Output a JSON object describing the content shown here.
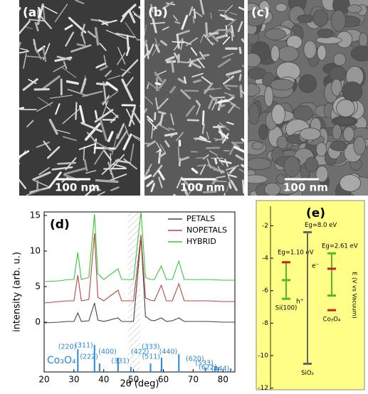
{
  "images": [
    {
      "label": "(a)",
      "scale_bar": "100 nm"
    },
    {
      "label": "(b)",
      "scale_bar": "100 nm"
    },
    {
      "label": "(c)",
      "scale_bar": "100 nm"
    }
  ],
  "chart_data": [
    {
      "type": "line",
      "panel_label": "(d)",
      "xlabel": "2θ (deg)",
      "ylabel": "intensity (arb. u.)",
      "xlim": [
        20,
        84
      ],
      "ylim": [
        -7,
        15.5
      ],
      "xticks": [
        20,
        30,
        40,
        50,
        60,
        70,
        80
      ],
      "yticks": [
        0,
        5,
        10,
        15
      ],
      "x": [
        20,
        25,
        28,
        30,
        31.3,
        32.5,
        35,
        36.9,
        38,
        40,
        44.8,
        46,
        50,
        52.5,
        54,
        55.6,
        57,
        59.3,
        61,
        63,
        65.2,
        67,
        70,
        75,
        80,
        84
      ],
      "series": [
        {
          "name": "PETALS",
          "color": "#444444",
          "values": [
            -0.1,
            0,
            0.1,
            0.1,
            1.3,
            0.1,
            0.2,
            2.7,
            0.3,
            0.1,
            0.6,
            0.1,
            0.1,
            12,
            0.8,
            0.3,
            0.2,
            0.6,
            0.1,
            0.2,
            0.6,
            0.1,
            0.1,
            0.1,
            0,
            0
          ]
        },
        {
          "name": "NOPETALS",
          "color": "#b5483a",
          "values": [
            2.7,
            2.9,
            3.0,
            3.0,
            6.6,
            3.0,
            3.2,
            12.5,
            3.5,
            3.0,
            4.5,
            3.0,
            3.0,
            12.3,
            3.4,
            3.1,
            3.0,
            5.2,
            3.0,
            3.0,
            5.4,
            3.0,
            3.0,
            3.0,
            2.9,
            2.9
          ]
        },
        {
          "name": "HYBRID",
          "color": "#3cc43c",
          "values": [
            5.7,
            5.8,
            6.0,
            6.0,
            9.8,
            6.0,
            6.3,
            15.2,
            6.8,
            6.0,
            7.5,
            6.0,
            6.0,
            15.5,
            6.3,
            6.0,
            6.0,
            7.9,
            6.0,
            6.0,
            8.6,
            6.0,
            6.0,
            6.0,
            5.9,
            5.9
          ]
        }
      ],
      "reference": {
        "name": "Co₃O₄",
        "color": "#2a86d8",
        "x": [
          31.3,
          36.9,
          38.6,
          44.8,
          49.1,
          55.7,
          59.3,
          59.4,
          65.2,
          74.1,
          77.3,
          78.4,
          82.6
        ],
        "values": [
          -3.8,
          -3.2,
          -5.8,
          -5.0,
          -6.3,
          -5.8,
          -6.6,
          -5.0,
          -4.5,
          -6.4,
          -6.2,
          -6.3,
          -6.5
        ],
        "labels": [
          "(220)",
          "(311)",
          "(222)",
          "(400)",
          "(331)",
          "(422)",
          "(333)",
          "(511)",
          "(440)",
          "(620)",
          "(533)",
          "(622)",
          "(444)"
        ]
      }
    },
    {
      "type": "levels",
      "panel_label": "(e)",
      "ylabel": "E (V vs Vacuum)",
      "ylim": [
        -12.1,
        -0.8
      ],
      "yticks": [
        -2,
        -4,
        -6,
        -8,
        -10,
        -12
      ],
      "materials": [
        {
          "name": "Si(100)",
          "gap_label": "Eg=1.10 eV",
          "bar": [
            -4.25,
            -6.5
          ],
          "bar_color": "#55b82a",
          "levels": [
            -4.25,
            -5.35,
            -6.5
          ],
          "colors": [
            "#c8201a",
            "#55b82a",
            "#55b82a"
          ]
        },
        {
          "name": "SiO₂",
          "gap_label": "Eg=8.0 eV",
          "bar": [
            -2.4,
            -10.5
          ],
          "bar_color": "#666666",
          "levels": [
            -2.4,
            -10.5
          ],
          "colors": [
            "#666666",
            "#666666"
          ]
        },
        {
          "name": "Co₃O₄",
          "gap_label": "Eg=2.61 eV",
          "bar": [
            -3.7,
            -6.3
          ],
          "bar_color": "#55b82a",
          "levels": [
            -3.7,
            -4.65,
            -6.3,
            -7.2
          ],
          "colors": [
            "#55b82a",
            "#c8201a",
            "#55b82a",
            "#c8201a"
          ]
        }
      ],
      "carriers": [
        "e⁻",
        "h⁺"
      ]
    }
  ]
}
